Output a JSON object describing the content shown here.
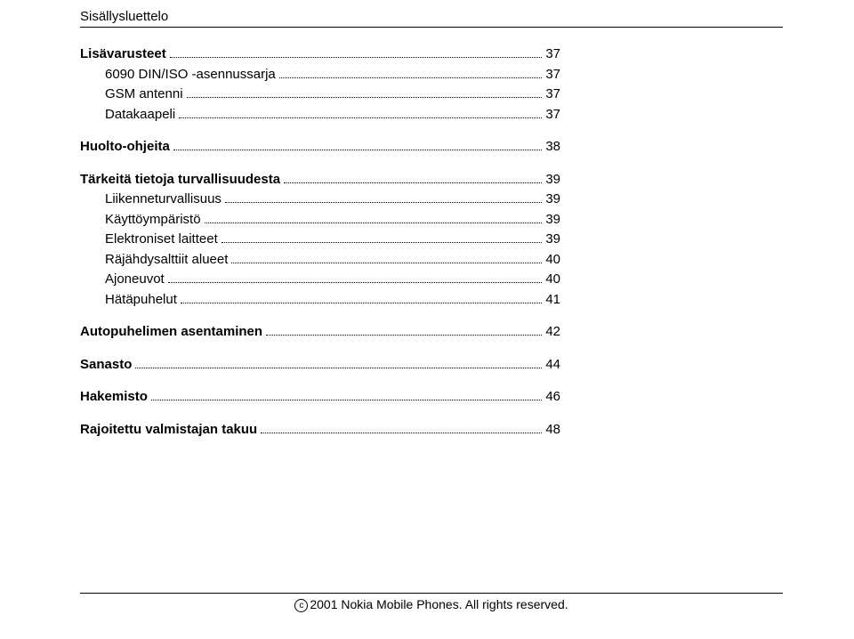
{
  "header": {
    "title": "Sisällysluettelo"
  },
  "toc": [
    {
      "label": "Lisävarusteet",
      "page": "37",
      "bold": true,
      "indent": false,
      "gap": false
    },
    {
      "label": "6090 DIN/ISO -asennussarja",
      "page": "37",
      "bold": false,
      "indent": true,
      "gap": false
    },
    {
      "label": "GSM antenni",
      "page": "37",
      "bold": false,
      "indent": true,
      "gap": false
    },
    {
      "label": "Datakaapeli",
      "page": "37",
      "bold": false,
      "indent": true,
      "gap": false
    },
    {
      "label": "Huolto-ohjeita",
      "page": "38",
      "bold": true,
      "indent": false,
      "gap": true
    },
    {
      "label": "Tärkeitä tietoja turvallisuudesta",
      "page": "39",
      "bold": true,
      "indent": false,
      "gap": true
    },
    {
      "label": "Liikenneturvallisuus",
      "page": "39",
      "bold": false,
      "indent": true,
      "gap": false
    },
    {
      "label": "Käyttöympäristö",
      "page": "39",
      "bold": false,
      "indent": true,
      "gap": false
    },
    {
      "label": "Elektroniset laitteet",
      "page": "39",
      "bold": false,
      "indent": true,
      "gap": false
    },
    {
      "label": "Räjähdysalttiit alueet",
      "page": "40",
      "bold": false,
      "indent": true,
      "gap": false
    },
    {
      "label": "Ajoneuvot",
      "page": "40",
      "bold": false,
      "indent": true,
      "gap": false
    },
    {
      "label": "Hätäpuhelut",
      "page": "41",
      "bold": false,
      "indent": true,
      "gap": false
    },
    {
      "label": "Autopuhelimen asentaminen",
      "page": "42",
      "bold": true,
      "indent": false,
      "gap": true
    },
    {
      "label": "Sanasto",
      "page": "44",
      "bold": true,
      "indent": false,
      "gap": true
    },
    {
      "label": "Hakemisto",
      "page": "46",
      "bold": true,
      "indent": false,
      "gap": true
    },
    {
      "label": "Rajoitettu valmistajan takuu",
      "page": "48",
      "bold": true,
      "indent": false,
      "gap": true
    }
  ],
  "footer": {
    "text": "2001 Nokia Mobile Phones. All rights reserved."
  }
}
